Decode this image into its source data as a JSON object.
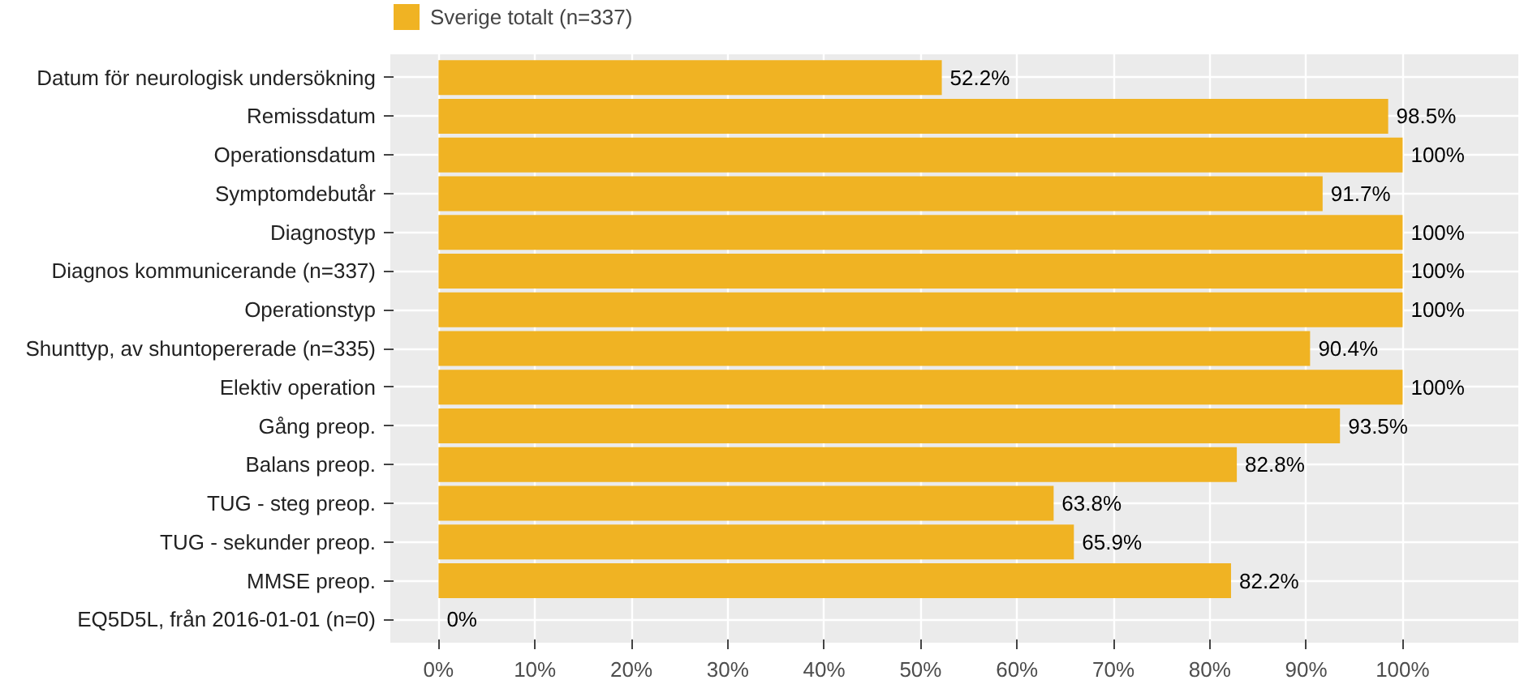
{
  "chart_data": {
    "type": "bar",
    "orientation": "horizontal",
    "categories": [
      "Datum för neurologisk undersökning",
      "Remissdatum",
      "Operationsdatum",
      "Symptomdebutår",
      "Diagnostyp",
      "Diagnos kommunicerande (n=337)",
      "Operationstyp",
      "Shunttyp, av shuntopererade (n=335)",
      "Elektiv operation",
      "Gång preop.",
      "Balans preop.",
      "TUG - steg preop.",
      "TUG - sekunder preop.",
      "MMSE preop.",
      "EQ5D5L, från 2016-01-01 (n=0)"
    ],
    "series": [
      {
        "name": "Sverige totalt (n=337)",
        "color": "#f0b323",
        "values": [
          52.2,
          98.5,
          100,
          91.7,
          100,
          100,
          100,
          90.4,
          100,
          93.5,
          82.8,
          63.8,
          65.9,
          82.2,
          0
        ],
        "value_labels": [
          "52.2%",
          "98.5%",
          "100%",
          "91.7%",
          "100%",
          "100%",
          "100%",
          "90.4%",
          "100%",
          "93.5%",
          "82.8%",
          "63.8%",
          "65.9%",
          "82.2%",
          "0%"
        ]
      }
    ],
    "xlim": [
      -5,
      112
    ],
    "xticks": [
      {
        "value": 0,
        "label": "0%"
      },
      {
        "value": 10,
        "label": "10%"
      },
      {
        "value": 20,
        "label": "20%"
      },
      {
        "value": 30,
        "label": "30%"
      },
      {
        "value": 40,
        "label": "40%"
      },
      {
        "value": 50,
        "label": "50%"
      },
      {
        "value": 60,
        "label": "60%"
      },
      {
        "value": 70,
        "label": "70%"
      },
      {
        "value": 80,
        "label": "80%"
      },
      {
        "value": 90,
        "label": "90%"
      },
      {
        "value": 100,
        "label": "100%"
      }
    ],
    "grid": true,
    "legend": "top left"
  }
}
